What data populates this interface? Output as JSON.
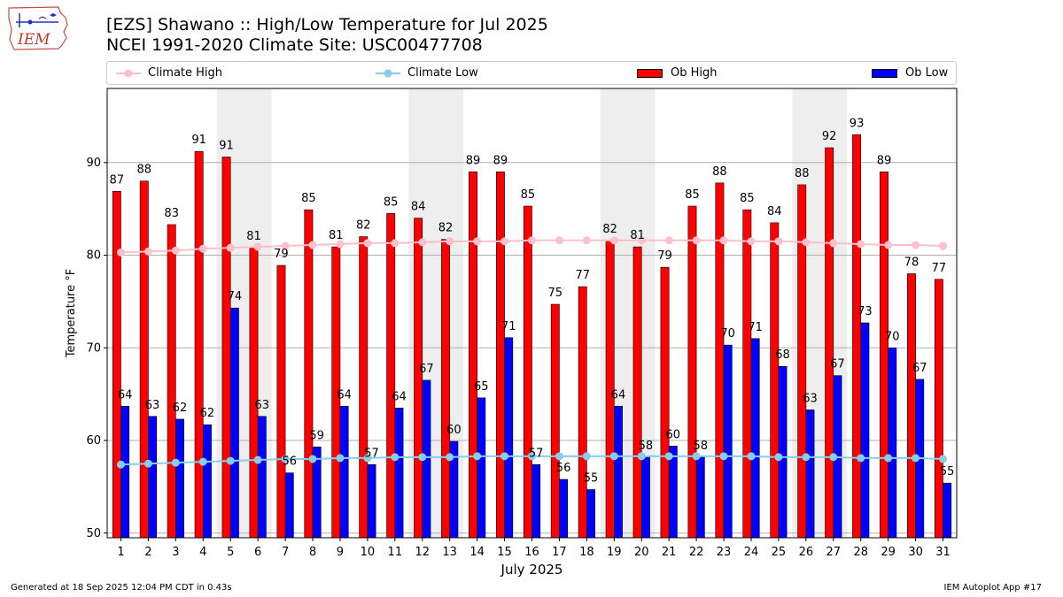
{
  "header": {
    "title_line1": "[EZS] Shawano :: High/Low Temperature for Jul 2025",
    "title_line2": "NCEI 1991-2020 Climate Site: USC00477708",
    "logo_text": "IEM"
  },
  "footer": {
    "generated": "Generated at 18 Sep 2025 12:04 PM CDT in 0.43s",
    "app": "IEM Autoplot App #17"
  },
  "colors": {
    "ob_high": "#ff0000",
    "ob_low": "#0000ff",
    "climate_high": "#ffc0cb",
    "climate_low": "#87ceeb",
    "weekend_shade": "#eeeeee",
    "grid": "#b0b0b0"
  },
  "chart_data": {
    "type": "bar",
    "xlabel": "July 2025",
    "ylabel": "Temperature °F",
    "ylim": [
      49.5,
      98
    ],
    "yticks": [
      50,
      60,
      70,
      80,
      90
    ],
    "grid": "horizontal",
    "legend_placement": "top",
    "shaded_day_ranges": [
      [
        5,
        6
      ],
      [
        12,
        13
      ],
      [
        19,
        20
      ],
      [
        26,
        27
      ]
    ],
    "categories": [
      "1",
      "2",
      "3",
      "4",
      "5",
      "6",
      "7",
      "8",
      "9",
      "10",
      "11",
      "12",
      "13",
      "14",
      "15",
      "16",
      "17",
      "18",
      "19",
      "20",
      "21",
      "22",
      "23",
      "24",
      "25",
      "26",
      "27",
      "28",
      "29",
      "30",
      "31"
    ],
    "series": [
      {
        "name": "Ob High",
        "kind": "bar",
        "values": [
          87,
          88,
          83,
          91,
          91,
          81,
          79,
          85,
          81,
          82,
          85,
          84,
          82,
          89,
          89,
          85,
          75,
          77,
          82,
          81,
          79,
          85,
          88,
          85,
          84,
          88,
          92,
          93,
          89,
          78,
          77
        ],
        "plotted": [
          86.9,
          88.0,
          83.3,
          91.2,
          90.6,
          80.8,
          78.9,
          84.9,
          80.9,
          82.0,
          84.5,
          84.0,
          81.7,
          89.0,
          89.0,
          85.3,
          74.7,
          76.6,
          81.6,
          80.9,
          78.7,
          85.3,
          87.8,
          84.9,
          83.5,
          87.6,
          91.6,
          93.0,
          89.0,
          78.0,
          77.4
        ]
      },
      {
        "name": "Ob Low",
        "kind": "bar",
        "values": [
          64,
          63,
          62,
          62,
          74,
          63,
          56,
          59,
          64,
          57,
          64,
          67,
          60,
          65,
          71,
          57,
          56,
          55,
          64,
          58,
          60,
          58,
          70,
          71,
          68,
          63,
          67,
          73,
          70,
          67,
          55
        ],
        "plotted": [
          63.7,
          62.6,
          62.3,
          61.7,
          74.3,
          62.6,
          56.5,
          59.3,
          63.7,
          57.4,
          63.5,
          66.5,
          59.9,
          64.6,
          71.1,
          57.4,
          55.8,
          54.7,
          63.7,
          58.2,
          59.4,
          58.2,
          70.3,
          71.0,
          68.0,
          63.3,
          67.0,
          72.7,
          70.0,
          66.6,
          55.4
        ]
      },
      {
        "name": "Climate High",
        "kind": "line",
        "values": [
          80.3,
          80.4,
          80.5,
          80.7,
          80.8,
          80.9,
          81.0,
          81.1,
          81.2,
          81.3,
          81.3,
          81.4,
          81.5,
          81.5,
          81.5,
          81.6,
          81.6,
          81.6,
          81.6,
          81.6,
          81.6,
          81.6,
          81.6,
          81.5,
          81.5,
          81.4,
          81.3,
          81.2,
          81.1,
          81.1,
          81.0
        ]
      },
      {
        "name": "Climate Low",
        "kind": "line",
        "values": [
          57.4,
          57.5,
          57.6,
          57.7,
          57.8,
          57.9,
          58.0,
          58.0,
          58.1,
          58.1,
          58.2,
          58.2,
          58.2,
          58.3,
          58.3,
          58.3,
          58.3,
          58.3,
          58.3,
          58.3,
          58.3,
          58.3,
          58.3,
          58.3,
          58.2,
          58.2,
          58.2,
          58.1,
          58.1,
          58.1,
          58.0
        ]
      }
    ]
  }
}
